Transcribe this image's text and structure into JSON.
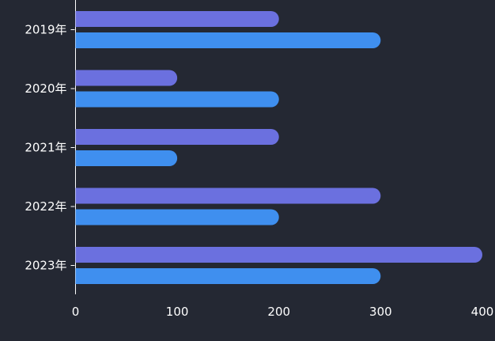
{
  "chart_data": {
    "type": "bar",
    "orientation": "horizontal",
    "categories": [
      "2019年",
      "2020年",
      "2021年",
      "2022年",
      "2023年"
    ],
    "series": [
      {
        "values": [
          200,
          100,
          200,
          300,
          400
        ],
        "color": "#6b70df"
      },
      {
        "values": [
          300,
          200,
          100,
          200,
          300
        ],
        "color": "#3f8fef"
      }
    ],
    "x_ticks": [
      "0",
      "100",
      "200",
      "300",
      "400"
    ],
    "xlim": [
      0,
      400
    ],
    "grid": false,
    "legend": "none",
    "background": "#242833",
    "text_color": "#ffffff",
    "title": "",
    "xlabel": "",
    "ylabel": ""
  }
}
